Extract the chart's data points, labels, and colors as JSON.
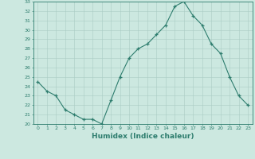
{
  "x": [
    0,
    1,
    2,
    3,
    4,
    5,
    6,
    7,
    8,
    9,
    10,
    11,
    12,
    13,
    14,
    15,
    16,
    17,
    18,
    19,
    20,
    21,
    22,
    23
  ],
  "y": [
    24.5,
    23.5,
    23.0,
    21.5,
    21.0,
    20.5,
    20.5,
    20.0,
    22.5,
    25.0,
    27.0,
    28.0,
    28.5,
    29.5,
    30.5,
    32.5,
    33.0,
    31.5,
    30.5,
    28.5,
    27.5,
    25.0,
    23.0,
    22.0
  ],
  "xlabel": "Humidex (Indice chaleur)",
  "ylim": [
    20,
    33
  ],
  "xlim": [
    -0.5,
    23.5
  ],
  "yticks": [
    20,
    21,
    22,
    23,
    24,
    25,
    26,
    27,
    28,
    29,
    30,
    31,
    32,
    33
  ],
  "xticks": [
    0,
    1,
    2,
    3,
    4,
    5,
    6,
    7,
    8,
    9,
    10,
    11,
    12,
    13,
    14,
    15,
    16,
    17,
    18,
    19,
    20,
    21,
    22,
    23
  ],
  "line_color": "#2e7d6e",
  "marker": "+",
  "bg_color": "#cce8e0",
  "grid_color": "#aacdc5",
  "xlabel_color": "#2e7d6e",
  "tick_color": "#2e7d6e",
  "axis_color": "#2e7d6e",
  "tick_fontsize": 4.5,
  "xlabel_fontsize": 6.5
}
